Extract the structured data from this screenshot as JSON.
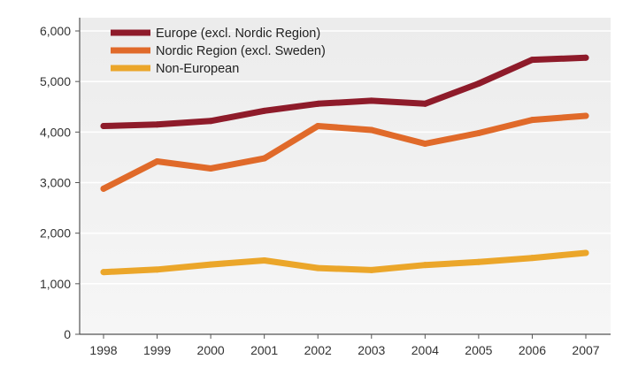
{
  "chart_data": {
    "type": "line",
    "title": "",
    "xlabel": "",
    "ylabel": "",
    "x": [
      "1998",
      "1999",
      "2000",
      "2001",
      "2002",
      "2003",
      "2004",
      "2005",
      "2006",
      "2007"
    ],
    "ylim": [
      0,
      6000
    ],
    "yticks": [
      0,
      1000,
      2000,
      3000,
      4000,
      5000,
      6000
    ],
    "ytick_labels": [
      "0",
      "1,000",
      "2,000",
      "3,000",
      "4,000",
      "5,000",
      "6,000"
    ],
    "grid": "horizontal",
    "legend_position": "top-left",
    "series": [
      {
        "name": "Europe (excl. Nordic Region)",
        "color": "#8e1b2a",
        "values": [
          4120,
          4150,
          4220,
          4420,
          4560,
          4620,
          4560,
          4960,
          5430,
          5470
        ]
      },
      {
        "name": "Nordic Region (excl. Sweden)",
        "color": "#e06a2a",
        "values": [
          2880,
          3420,
          3280,
          3480,
          4120,
          4040,
          3770,
          3980,
          4240,
          4320
        ]
      },
      {
        "name": "Non-European",
        "color": "#eba62a",
        "values": [
          1230,
          1280,
          1380,
          1460,
          1310,
          1270,
          1370,
          1430,
          1510,
          1610
        ]
      }
    ]
  }
}
